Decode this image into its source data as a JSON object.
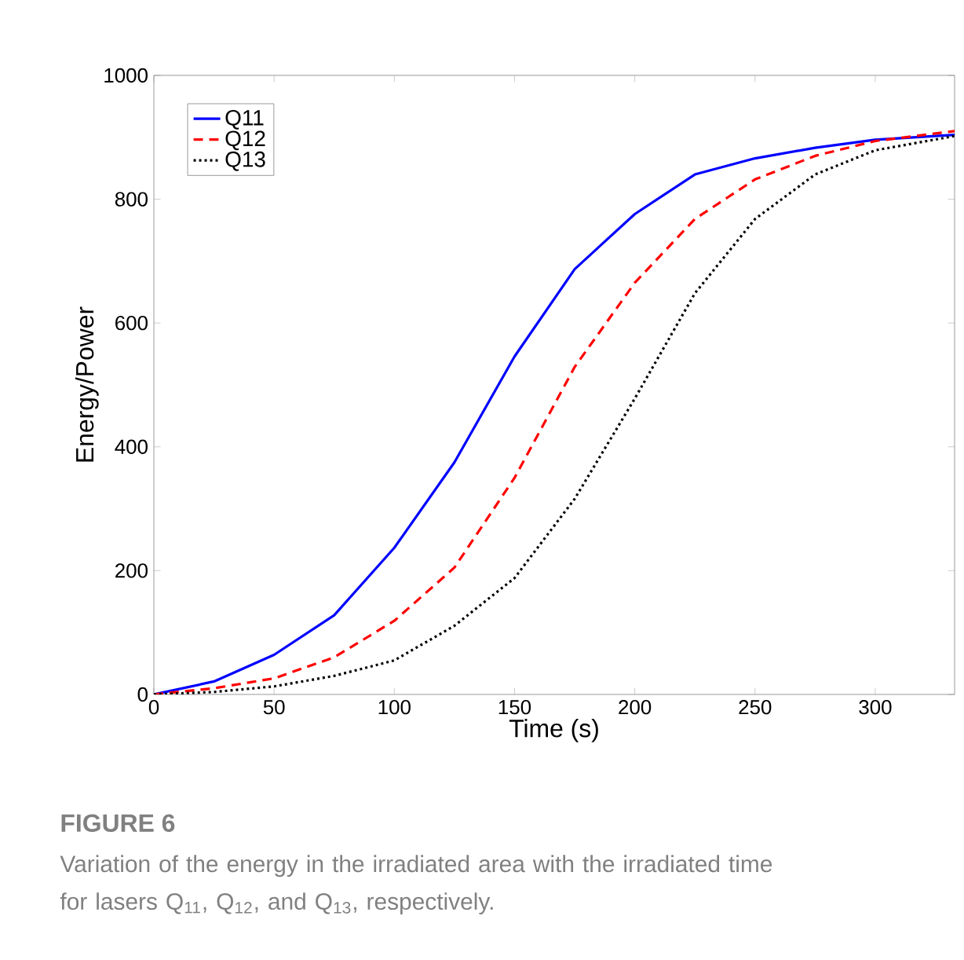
{
  "chart_data": {
    "type": "line",
    "xlabel": "Time (s)",
    "ylabel": "Energy/Power",
    "annotations": [
      "FIGURE 6",
      "Variation of the energy in the irradiated area with the irradiated time for lasers Q$_{11}$, Q$_{12}$, and Q$_{13}$, respectively."
    ],
    "x": [
      0,
      25,
      50,
      75,
      100,
      125,
      150,
      175,
      200,
      225,
      250,
      275,
      300,
      333
    ],
    "series": [
      {
        "name": "Q11",
        "color": "#0000ff",
        "line_style": "solid",
        "values": [
          0,
          21,
          64,
          128,
          237,
          375,
          546,
          687,
          776,
          840,
          866,
          883,
          896,
          904
        ]
      },
      {
        "name": "Q12",
        "color": "#ff0000",
        "line_style": "dashed",
        "values": [
          0,
          10,
          26,
          60,
          119,
          205,
          350,
          529,
          665,
          768,
          832,
          870,
          894,
          910
        ]
      },
      {
        "name": "Q13",
        "color": "#000000",
        "line_style": "dotted",
        "values": [
          0,
          4,
          13,
          30,
          55,
          111,
          188,
          316,
          478,
          648,
          768,
          840,
          879,
          902
        ]
      }
    ],
    "xlim": [
      0,
      333
    ],
    "ylim": [
      0,
      1000
    ],
    "xticks": [
      0,
      50,
      100,
      150,
      200,
      250,
      300
    ],
    "yticks": [
      0,
      200,
      400,
      600,
      800,
      1000
    ],
    "grid": false,
    "legend": "top left",
    "marker": "none"
  }
}
